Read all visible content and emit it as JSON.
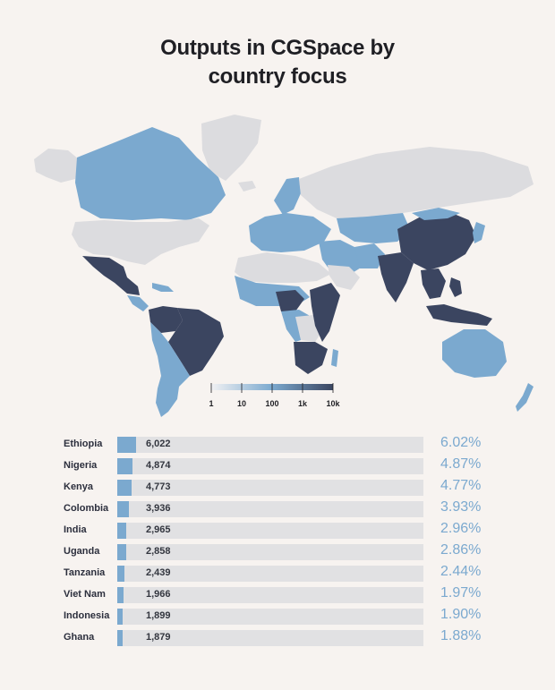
{
  "title": {
    "line1": "Outputs in CGSpace by",
    "line2": "country focus"
  },
  "colors": {
    "background": "#f7f3f0",
    "no_data": "#dcdcdf",
    "light": "#7ba9cf",
    "dark": "#3b4560",
    "bar_track": "#e1e1e3",
    "bar_fill": "#7ba9cf"
  },
  "chart_data": [
    {
      "type": "choropleth",
      "legend": {
        "ticks": [
          "1",
          "10",
          "100",
          "1k",
          "10k"
        ],
        "scale": "log"
      }
    },
    {
      "type": "bar",
      "orientation": "horizontal",
      "categories": [
        "Ethiopia",
        "Nigeria",
        "Kenya",
        "Colombia",
        "India",
        "Uganda",
        "Tanzania",
        "Viet Nam",
        "Indonesia",
        "Ghana"
      ],
      "values": [
        6022,
        4874,
        4773,
        3936,
        2965,
        2858,
        2439,
        1966,
        1899,
        1879
      ],
      "value_labels": [
        "6,022",
        "4,874",
        "4,773",
        "3,936",
        "2,965",
        "2,858",
        "2,439",
        "1,966",
        "1,899",
        "1,879"
      ],
      "percent_labels": [
        "6.02%",
        "4.87%",
        "4.77%",
        "3.93%",
        "2.96%",
        "2.86%",
        "2.44%",
        "1.97%",
        "1.90%",
        "1.88%"
      ],
      "percent_values": [
        6.02,
        4.87,
        4.77,
        3.93,
        2.96,
        2.86,
        2.44,
        1.97,
        1.9,
        1.88
      ],
      "xlim": [
        0,
        100
      ]
    }
  ]
}
